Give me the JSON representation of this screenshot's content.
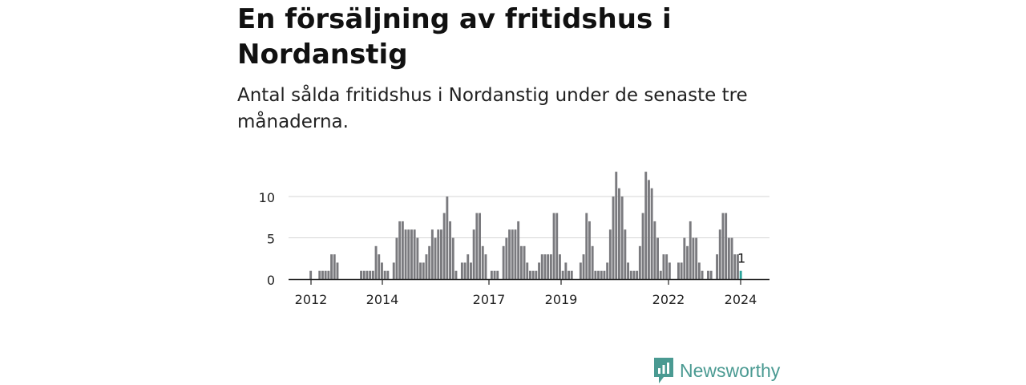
{
  "header": {
    "title": "En försäljning av fritidshus i Nordanstig",
    "subtitle": "Antal sålda fritidshus i Nordanstig under de senaste tre månaderna."
  },
  "chart_data": {
    "type": "bar",
    "x_tick_labels": [
      "2012",
      "2014",
      "2017",
      "2019",
      "2022",
      "2024"
    ],
    "y_tick_labels": [
      "0",
      "5",
      "10"
    ],
    "ylim": [
      0,
      13
    ],
    "grid": true,
    "values": [
      1,
      0,
      0,
      1,
      1,
      1,
      1,
      3,
      3,
      2,
      0,
      0,
      0,
      0,
      0,
      0,
      0,
      1,
      1,
      1,
      1,
      1,
      4,
      3,
      2,
      1,
      1,
      0,
      2,
      5,
      7,
      7,
      6,
      6,
      6,
      6,
      5,
      2,
      2,
      3,
      4,
      6,
      5,
      6,
      6,
      8,
      10,
      7,
      5,
      1,
      0,
      2,
      2,
      3,
      2,
      6,
      8,
      8,
      4,
      3,
      0,
      1,
      1,
      1,
      0,
      4,
      5,
      6,
      6,
      6,
      7,
      4,
      4,
      2,
      1,
      1,
      1,
      2,
      3,
      3,
      3,
      3,
      8,
      8,
      3,
      1,
      2,
      1,
      1,
      0,
      0,
      2,
      3,
      8,
      7,
      4,
      1,
      1,
      1,
      1,
      2,
      6,
      10,
      13,
      11,
      10,
      6,
      2,
      1,
      1,
      1,
      4,
      8,
      13,
      12,
      11,
      7,
      5,
      1,
      3,
      3,
      2,
      0,
      0,
      2,
      2,
      5,
      4,
      7,
      5,
      5,
      2,
      1,
      0,
      1,
      1,
      0,
      3,
      6,
      8,
      8,
      5,
      5,
      3,
      3,
      1
    ],
    "highlight_index": 145,
    "highlight_label": "1",
    "bar_color": "#7a7a7e",
    "highlight_color": "#2ba39a"
  },
  "brand": {
    "name": "Newsworthy",
    "color": "#4a9a92"
  }
}
